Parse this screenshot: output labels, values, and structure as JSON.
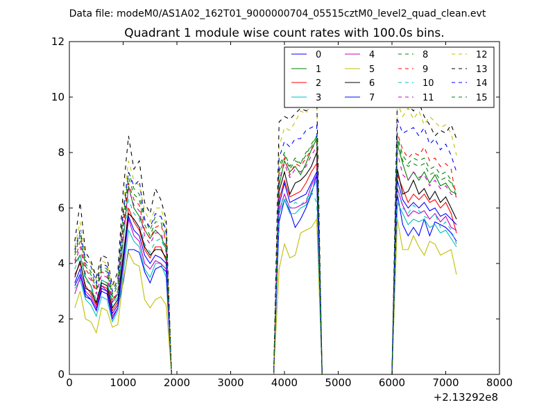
{
  "chart_data": {
    "type": "line",
    "suptitle": "Data file: modeM0/AS1A02_162T01_9000000704_05515cztM0_level2_quad_clean.evt",
    "title": "Quadrant 1 module wise count rates with 100.0s bins.",
    "xlabel": "",
    "ylabel": "",
    "xlim": [
      0,
      8000
    ],
    "ylim": [
      0,
      12
    ],
    "x_offset_label": "+2.13292e8",
    "x_ticks": [
      0,
      1000,
      2000,
      3000,
      4000,
      5000,
      6000,
      7000,
      8000
    ],
    "y_ticks": [
      0,
      2,
      4,
      6,
      8,
      10,
      12
    ],
    "x": [
      100,
      200,
      300,
      400,
      500,
      600,
      700,
      800,
      900,
      1000,
      1100,
      1200,
      1300,
      1400,
      1500,
      1600,
      1700,
      1800,
      1900,
      2000,
      2100,
      2200,
      2300,
      2400,
      2500,
      2600,
      2700,
      2800,
      2900,
      3000,
      3100,
      3200,
      3300,
      3400,
      3500,
      3600,
      3700,
      3800,
      3900,
      4000,
      4100,
      4200,
      4300,
      4400,
      4500,
      4600,
      4700,
      4800,
      4900,
      5000,
      5100,
      5200,
      5300,
      5400,
      5500,
      5600,
      5700,
      5800,
      5900,
      6000,
      6100,
      6200,
      6300,
      6400,
      6500,
      6600,
      6700,
      6800,
      6900,
      7000,
      7100,
      7200
    ],
    "legend_location": "upper right",
    "legend_columns": 4,
    "series": [
      {
        "name": "0",
        "color": "#0000ff",
        "dash": "solid",
        "values": [
          3.2,
          3.6,
          2.8,
          2.7,
          2.3,
          3.0,
          2.9,
          2.0,
          2.4,
          3.3,
          4.5,
          4.5,
          4.4,
          3.7,
          3.3,
          3.8,
          3.9,
          3.7,
          0,
          0,
          0,
          0,
          0,
          0,
          0,
          0,
          0,
          0,
          0,
          0,
          0,
          0,
          0,
          0,
          0,
          0,
          0,
          0,
          5.5,
          6.3,
          5.9,
          5.3,
          5.6,
          6.0,
          6.5,
          7.2,
          0,
          0,
          0,
          0,
          0,
          0,
          0,
          0,
          0,
          0,
          0,
          0,
          0,
          0,
          6.5,
          5.4,
          5.0,
          5.3,
          5.0,
          5.6,
          5.0,
          5.5,
          5.4,
          5.3,
          5.1,
          4.8
        ]
      },
      {
        "name": "1",
        "color": "#008000",
        "dash": "solid",
        "values": [
          4.0,
          4.3,
          3.5,
          3.2,
          2.5,
          3.4,
          3.3,
          2.6,
          2.9,
          4.8,
          6.8,
          6.0,
          5.7,
          5.2,
          4.9,
          5.2,
          5.0,
          4.5,
          0,
          0,
          0,
          0,
          0,
          0,
          0,
          0,
          0,
          0,
          0,
          0,
          0,
          0,
          0,
          0,
          0,
          0,
          0,
          0,
          6.8,
          7.7,
          7.3,
          7.5,
          7.2,
          7.6,
          8.1,
          8.5,
          0,
          0,
          0,
          0,
          0,
          0,
          0,
          0,
          0,
          0,
          0,
          0,
          0,
          0,
          8.3,
          7.6,
          7.0,
          7.3,
          7.0,
          7.3,
          6.9,
          7.2,
          6.8,
          6.9,
          6.6,
          6.5
        ]
      },
      {
        "name": "2",
        "color": "#ff0000",
        "dash": "solid",
        "values": [
          3.6,
          4.0,
          3.2,
          2.9,
          2.5,
          3.2,
          3.1,
          2.3,
          2.6,
          4.2,
          6.0,
          5.5,
          5.2,
          4.5,
          4.2,
          4.6,
          4.6,
          4.1,
          0,
          0,
          0,
          0,
          0,
          0,
          0,
          0,
          0,
          0,
          0,
          0,
          0,
          0,
          0,
          0,
          0,
          0,
          0,
          0,
          6.3,
          7.0,
          6.4,
          6.5,
          6.6,
          6.9,
          7.3,
          7.6,
          0,
          0,
          0,
          0,
          0,
          0,
          0,
          0,
          0,
          0,
          0,
          0,
          0,
          0,
          7.2,
          6.7,
          6.2,
          6.5,
          6.3,
          6.5,
          6.2,
          6.3,
          6.0,
          6.2,
          5.8,
          5.1
        ]
      },
      {
        "name": "3",
        "color": "#00bfbf",
        "dash": "solid",
        "values": [
          3.1,
          3.4,
          2.7,
          2.5,
          2.1,
          2.8,
          2.7,
          1.9,
          2.3,
          3.6,
          5.2,
          4.8,
          4.6,
          3.8,
          3.5,
          4.0,
          4.0,
          3.5,
          0,
          0,
          0,
          0,
          0,
          0,
          0,
          0,
          0,
          0,
          0,
          0,
          0,
          0,
          0,
          0,
          0,
          0,
          0,
          0,
          5.8,
          6.3,
          5.8,
          5.8,
          6.0,
          6.1,
          6.6,
          7.0,
          0,
          0,
          0,
          0,
          0,
          0,
          0,
          0,
          0,
          0,
          0,
          0,
          0,
          0,
          6.2,
          5.8,
          5.4,
          5.6,
          5.5,
          5.6,
          5.3,
          5.4,
          5.1,
          5.2,
          4.9,
          4.6
        ]
      },
      {
        "name": "4",
        "color": "#bf00bf",
        "dash": "solid",
        "values": [
          2.9,
          3.5,
          3.0,
          2.8,
          2.4,
          3.2,
          3.0,
          2.1,
          2.4,
          3.9,
          5.6,
          5.0,
          4.8,
          4.0,
          3.8,
          4.1,
          4.0,
          3.8,
          0,
          0,
          0,
          0,
          0,
          0,
          0,
          0,
          0,
          0,
          0,
          0,
          0,
          0,
          0,
          0,
          0,
          0,
          0,
          0,
          5.9,
          6.5,
          6.0,
          6.0,
          6.1,
          6.2,
          6.8,
          7.2,
          0,
          0,
          0,
          0,
          0,
          0,
          0,
          0,
          0,
          0,
          0,
          0,
          0,
          0,
          6.7,
          6.1,
          5.7,
          5.9,
          5.8,
          5.9,
          5.6,
          5.8,
          5.5,
          5.7,
          5.3,
          5.2
        ]
      },
      {
        "name": "5",
        "color": "#bfbf00",
        "dash": "solid",
        "values": [
          2.4,
          3.0,
          2.0,
          1.9,
          1.5,
          2.4,
          2.3,
          1.7,
          1.8,
          3.4,
          4.4,
          4.0,
          3.9,
          2.7,
          2.4,
          2.7,
          2.8,
          2.5,
          0,
          0,
          0,
          0,
          0,
          0,
          0,
          0,
          0,
          0,
          0,
          0,
          0,
          0,
          0,
          0,
          0,
          0,
          0,
          0,
          3.8,
          4.7,
          4.2,
          4.3,
          5.1,
          5.2,
          5.3,
          5.6,
          0,
          0,
          0,
          0,
          0,
          0,
          0,
          0,
          0,
          0,
          0,
          0,
          0,
          0,
          5.6,
          4.5,
          4.5,
          5.0,
          4.6,
          4.3,
          4.8,
          4.7,
          4.3,
          4.4,
          4.5,
          3.6
        ]
      },
      {
        "name": "6",
        "color": "#000000",
        "dash": "solid",
        "values": [
          3.5,
          4.1,
          3.1,
          3.0,
          2.6,
          3.3,
          3.2,
          2.4,
          2.7,
          4.3,
          5.8,
          5.6,
          5.3,
          4.6,
          4.3,
          4.5,
          4.5,
          4.2,
          0,
          0,
          0,
          0,
          0,
          0,
          0,
          0,
          0,
          0,
          0,
          0,
          0,
          0,
          0,
          0,
          0,
          0,
          0,
          0,
          6.6,
          7.3,
          6.5,
          6.9,
          7.0,
          7.2,
          7.5,
          8.0,
          0,
          0,
          0,
          0,
          0,
          0,
          0,
          0,
          0,
          0,
          0,
          0,
          0,
          0,
          7.4,
          6.5,
          6.6,
          7.0,
          6.5,
          6.7,
          6.3,
          6.6,
          6.2,
          6.4,
          6.0,
          5.6
        ]
      },
      {
        "name": "7",
        "color": "#0000ff",
        "dash": "solid",
        "values": [
          3.3,
          3.8,
          2.9,
          2.7,
          2.3,
          3.1,
          3.0,
          2.2,
          2.5,
          4.0,
          5.7,
          5.2,
          5.0,
          4.3,
          4.0,
          4.3,
          4.2,
          4.0,
          0,
          0,
          0,
          0,
          0,
          0,
          0,
          0,
          0,
          0,
          0,
          0,
          0,
          0,
          0,
          0,
          0,
          0,
          0,
          0,
          6.1,
          6.9,
          6.2,
          6.3,
          6.4,
          6.5,
          6.9,
          7.3,
          0,
          0,
          0,
          0,
          0,
          0,
          0,
          0,
          0,
          0,
          0,
          0,
          0,
          0,
          7.0,
          6.3,
          6.0,
          6.2,
          6.0,
          6.2,
          5.9,
          6.0,
          5.7,
          5.8,
          5.6,
          5.4
        ]
      },
      {
        "name": "8",
        "color": "#008000",
        "dash": "dashed",
        "values": [
          4.4,
          5.1,
          4.0,
          3.7,
          3.2,
          3.9,
          3.8,
          2.9,
          3.3,
          5.7,
          7.3,
          6.7,
          6.5,
          5.6,
          5.2,
          5.7,
          5.7,
          5.1,
          0,
          0,
          0,
          0,
          0,
          0,
          0,
          0,
          0,
          0,
          0,
          0,
          0,
          0,
          0,
          0,
          0,
          0,
          0,
          0,
          7.5,
          8.0,
          7.5,
          7.8,
          7.6,
          7.9,
          8.3,
          8.6,
          0,
          0,
          0,
          0,
          0,
          0,
          0,
          0,
          0,
          0,
          0,
          0,
          0,
          0,
          8.5,
          7.7,
          7.5,
          7.6,
          7.5,
          7.6,
          7.2,
          7.3,
          7.0,
          7.1,
          6.9,
          6.6
        ]
      },
      {
        "name": "9",
        "color": "#ff0000",
        "dash": "dashed",
        "values": [
          4.1,
          4.8,
          3.8,
          3.5,
          3.0,
          3.7,
          3.6,
          2.7,
          3.0,
          5.3,
          6.9,
          6.3,
          6.1,
          5.2,
          4.9,
          5.3,
          5.4,
          4.8,
          0,
          0,
          0,
          0,
          0,
          0,
          0,
          0,
          0,
          0,
          0,
          0,
          0,
          0,
          0,
          0,
          0,
          0,
          0,
          0,
          7.2,
          7.8,
          7.2,
          7.6,
          7.5,
          7.8,
          8.1,
          8.4,
          0,
          0,
          0,
          0,
          0,
          0,
          0,
          0,
          0,
          0,
          0,
          0,
          0,
          0,
          8.7,
          8.1,
          7.8,
          8.0,
          7.9,
          8.2,
          7.7,
          7.8,
          7.5,
          7.6,
          7.4,
          6.3
        ]
      },
      {
        "name": "10",
        "color": "#00bfbf",
        "dash": "dashed",
        "values": [
          3.8,
          4.3,
          3.4,
          3.2,
          2.7,
          3.4,
          3.3,
          2.5,
          2.8,
          4.9,
          6.3,
          5.8,
          5.6,
          4.7,
          4.4,
          4.8,
          4.9,
          4.4,
          0,
          0,
          0,
          0,
          0,
          0,
          0,
          0,
          0,
          0,
          0,
          0,
          0,
          0,
          0,
          0,
          0,
          0,
          0,
          0,
          6.0,
          6.4,
          6.0,
          6.2,
          6.1,
          6.3,
          6.6,
          6.2,
          0,
          0,
          0,
          0,
          0,
          0,
          0,
          0,
          0,
          0,
          0,
          0,
          0,
          0,
          6.8,
          6.0,
          5.8,
          6.1,
          5.9,
          5.7,
          5.6,
          5.8,
          5.3,
          5.5,
          5.2,
          4.7
        ]
      },
      {
        "name": "11",
        "color": "#bf00bf",
        "dash": "dashed",
        "values": [
          4.0,
          4.6,
          3.6,
          3.4,
          2.9,
          3.6,
          3.5,
          2.6,
          3.0,
          5.1,
          6.7,
          6.1,
          5.9,
          5.0,
          4.7,
          5.1,
          5.1,
          4.6,
          0,
          0,
          0,
          0,
          0,
          0,
          0,
          0,
          0,
          0,
          0,
          0,
          0,
          0,
          0,
          0,
          0,
          0,
          0,
          0,
          7.0,
          7.6,
          7.1,
          7.4,
          7.3,
          7.5,
          7.9,
          8.2,
          0,
          0,
          0,
          0,
          0,
          0,
          0,
          0,
          0,
          0,
          0,
          0,
          0,
          0,
          8.0,
          7.2,
          7.0,
          7.3,
          7.1,
          7.2,
          6.8,
          7.0,
          6.7,
          6.8,
          6.5,
          6.4
        ]
      },
      {
        "name": "12",
        "color": "#bfbf00",
        "dash": "dashed",
        "values": [
          4.6,
          5.5,
          4.2,
          4.0,
          3.4,
          4.1,
          4.0,
          3.1,
          3.5,
          6.2,
          7.7,
          7.0,
          6.8,
          5.9,
          5.5,
          6.0,
          6.0,
          5.4,
          0,
          0,
          0,
          0,
          0,
          0,
          0,
          0,
          0,
          0,
          0,
          0,
          0,
          0,
          0,
          0,
          0,
          0,
          0,
          0,
          8.2,
          8.9,
          8.8,
          9.1,
          9.5,
          9.4,
          9.8,
          10.1,
          0,
          0,
          0,
          0,
          0,
          0,
          0,
          0,
          0,
          0,
          0,
          0,
          0,
          0,
          9.8,
          9.3,
          9.6,
          9.2,
          9.5,
          9.0,
          9.3,
          9.1,
          8.9,
          9.0,
          8.7,
          7.9
        ]
      },
      {
        "name": "13",
        "color": "#000000",
        "dash": "dashed",
        "values": [
          4.8,
          6.2,
          4.4,
          4.1,
          3.5,
          4.3,
          4.2,
          3.2,
          3.7,
          6.6,
          8.6,
          7.4,
          7.7,
          6.2,
          5.8,
          6.7,
          6.3,
          5.6,
          0,
          0,
          0,
          0,
          0,
          0,
          0,
          0,
          0,
          0,
          0,
          0,
          0,
          0,
          0,
          0,
          0,
          0,
          0,
          0,
          9.1,
          9.3,
          9.2,
          9.4,
          9.6,
          9.5,
          9.7,
          10.1,
          0,
          0,
          0,
          0,
          0,
          0,
          0,
          0,
          0,
          0,
          0,
          0,
          0,
          0,
          10.1,
          9.8,
          9.7,
          9.5,
          9.8,
          9.3,
          9.0,
          8.6,
          8.8,
          8.7,
          9.0,
          8.5
        ]
      },
      {
        "name": "14",
        "color": "#0000ff",
        "dash": "dashed",
        "values": [
          4.5,
          5.2,
          4.1,
          3.9,
          3.3,
          4.0,
          3.9,
          3.0,
          3.4,
          5.9,
          7.3,
          6.8,
          7.0,
          5.6,
          5.3,
          5.8,
          5.7,
          5.2,
          0,
          0,
          0,
          0,
          0,
          0,
          0,
          0,
          0,
          0,
          0,
          0,
          0,
          0,
          0,
          0,
          0,
          0,
          0,
          0,
          7.8,
          8.4,
          8.2,
          8.5,
          8.5,
          8.8,
          8.9,
          9.0,
          0,
          0,
          0,
          0,
          0,
          0,
          0,
          0,
          0,
          0,
          0,
          0,
          0,
          0,
          9.2,
          8.7,
          8.8,
          8.9,
          8.6,
          8.9,
          8.3,
          8.5,
          8.1,
          8.3,
          7.9,
          7.3
        ]
      },
      {
        "name": "15",
        "color": "#008000",
        "dash": "dashed",
        "values": [
          4.3,
          5.0,
          3.9,
          3.6,
          3.1,
          3.8,
          3.7,
          2.8,
          3.2,
          5.5,
          7.1,
          6.5,
          6.3,
          5.4,
          5.0,
          5.5,
          5.5,
          4.9,
          0,
          0,
          0,
          0,
          0,
          0,
          0,
          0,
          0,
          0,
          0,
          0,
          0,
          0,
          0,
          0,
          0,
          0,
          0,
          0,
          7.3,
          7.9,
          7.4,
          7.7,
          7.6,
          8.0,
          8.2,
          8.6,
          0,
          0,
          0,
          0,
          0,
          0,
          0,
          0,
          0,
          0,
          0,
          0,
          0,
          0,
          8.6,
          7.9,
          7.6,
          7.8,
          7.7,
          7.8,
          7.4,
          7.5,
          7.2,
          7.3,
          7.0,
          6.4
        ]
      }
    ]
  }
}
